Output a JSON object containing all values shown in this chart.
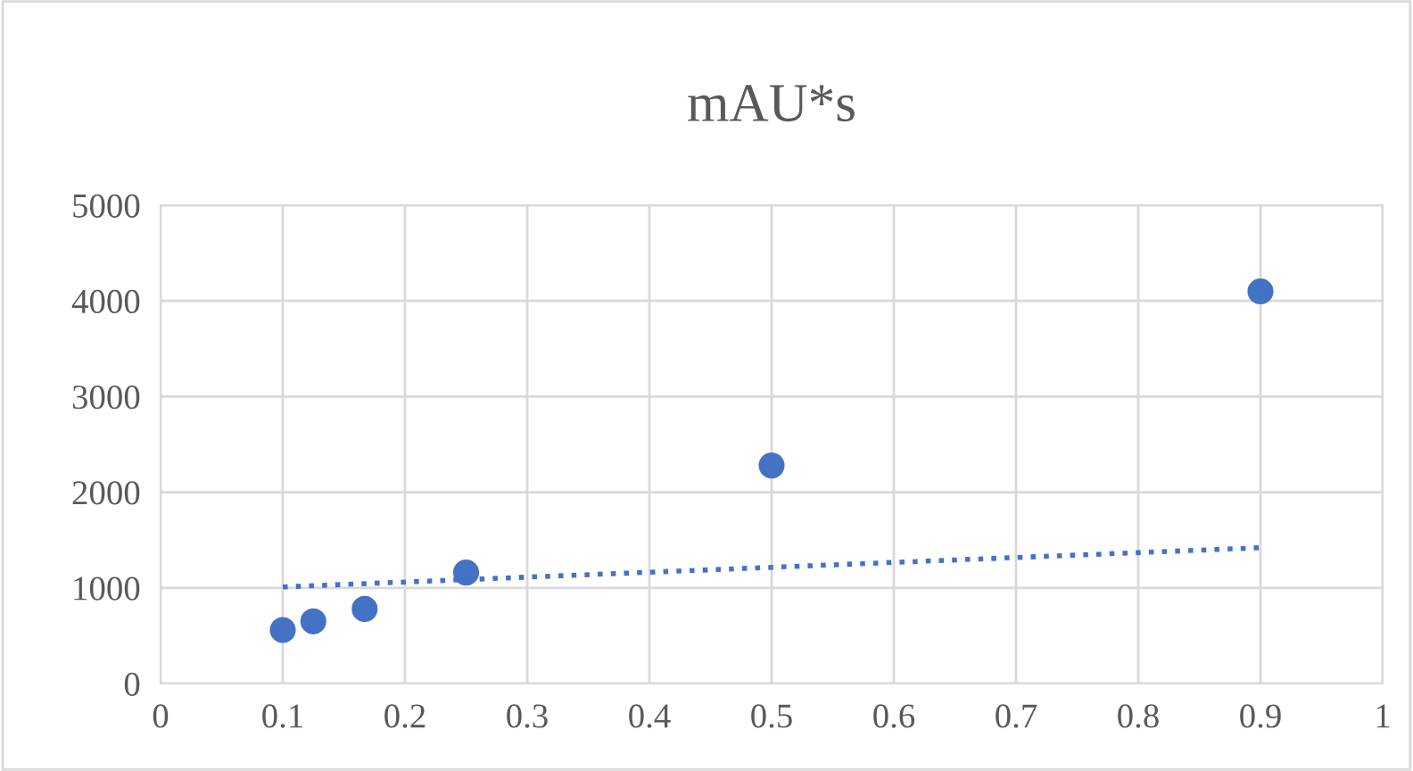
{
  "chart_data": {
    "type": "scatter",
    "title": "mAU*s",
    "series": [
      {
        "color": "#4472c4",
        "marker": "circle",
        "x": [
          0.1,
          0.125,
          0.167,
          0.25,
          0.5,
          0.9
        ],
        "values": [
          560,
          650,
          780,
          1160,
          2280,
          4100
        ]
      },
      {
        "type": "line",
        "color": "#4472c4",
        "line_style": "dotted",
        "marker": "none",
        "x": [
          0.1,
          0.9
        ],
        "values": [
          1010,
          1420
        ]
      }
    ],
    "xlim": [
      0,
      1
    ],
    "xticks": [
      0,
      0.1,
      0.2,
      0.3,
      0.4,
      0.5,
      0.6,
      0.7,
      0.8,
      0.9,
      1
    ],
    "ylim": [
      0,
      5000
    ],
    "yticks": [
      0,
      1000,
      2000,
      3000,
      4000,
      5000
    ],
    "grid": true,
    "legend": false
  }
}
